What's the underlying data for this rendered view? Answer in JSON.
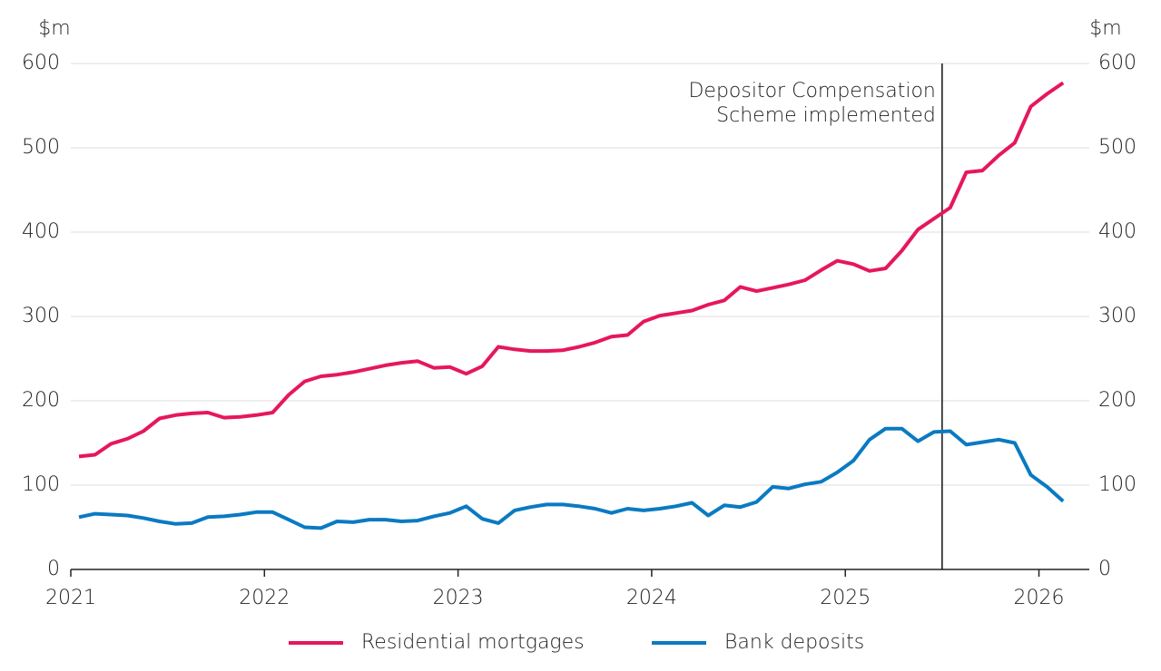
{
  "chart_data": {
    "type": "line",
    "y_label": "$m",
    "y2_label": "$m",
    "x": [
      2021.042,
      2021.125,
      2021.208,
      2021.292,
      2021.375,
      2021.458,
      2021.542,
      2021.625,
      2021.708,
      2021.792,
      2021.875,
      2021.958,
      2022.042,
      2022.125,
      2022.208,
      2022.292,
      2022.375,
      2022.458,
      2022.542,
      2022.625,
      2022.708,
      2022.792,
      2022.875,
      2022.958,
      2023.042,
      2023.125,
      2023.208,
      2023.292,
      2023.375,
      2023.458,
      2023.542,
      2023.625,
      2023.708,
      2023.792,
      2023.875,
      2023.958,
      2024.042,
      2024.125,
      2024.208,
      2024.292,
      2024.375,
      2024.458,
      2024.542,
      2024.625,
      2024.708,
      2024.792,
      2024.875,
      2024.958,
      2025.042,
      2025.125,
      2025.208,
      2025.292,
      2025.375,
      2025.458,
      2025.542,
      2025.625,
      2025.708,
      2025.792,
      2025.875,
      2025.958,
      2026.042,
      2026.125
    ],
    "series": [
      {
        "name": "Residential mortgages",
        "color": "#e6175c",
        "values": [
          134,
          136,
          149,
          155,
          164,
          179,
          183,
          185,
          186,
          180,
          181,
          183,
          186,
          207,
          223,
          229,
          231,
          234,
          238,
          242,
          245,
          247,
          239,
          240,
          232,
          241,
          264,
          261,
          259,
          259,
          260,
          264,
          269,
          276,
          278,
          294,
          301,
          304,
          307,
          314,
          319,
          335,
          330,
          334,
          338,
          343,
          355,
          366,
          362,
          354,
          357,
          378,
          403,
          416,
          429,
          471,
          473,
          491,
          506,
          549,
          564,
          577
        ]
      },
      {
        "name": "Bank deposits",
        "color": "#0a7ac2",
        "values": [
          62,
          66,
          65,
          64,
          61,
          57,
          54,
          55,
          62,
          63,
          65,
          68,
          68,
          59,
          50,
          49,
          57,
          56,
          59,
          59,
          57,
          58,
          63,
          67,
          75,
          60,
          55,
          70,
          74,
          77,
          77,
          75,
          72,
          67,
          72,
          70,
          72,
          75,
          79,
          64,
          76,
          74,
          80,
          98,
          96,
          101,
          104,
          115,
          129,
          154,
          167,
          167,
          152,
          163,
          164,
          148,
          151,
          154,
          150,
          112,
          98,
          81
        ]
      }
    ],
    "xlim": [
      2021,
      2026.26
    ],
    "xticks": [
      2021,
      2022,
      2023,
      2024,
      2025,
      2026
    ],
    "ylim": [
      0,
      600
    ],
    "yticks": [
      0,
      100,
      200,
      300,
      400,
      500,
      600
    ],
    "y2lim": [
      0,
      600
    ],
    "y2ticks": [
      0,
      100,
      200,
      300,
      400,
      500,
      600
    ],
    "grid": true,
    "annotation": {
      "x": 2025.5,
      "lines": [
        "Depositor Compensation",
        "Scheme implemented"
      ]
    },
    "legend": "bottom"
  }
}
